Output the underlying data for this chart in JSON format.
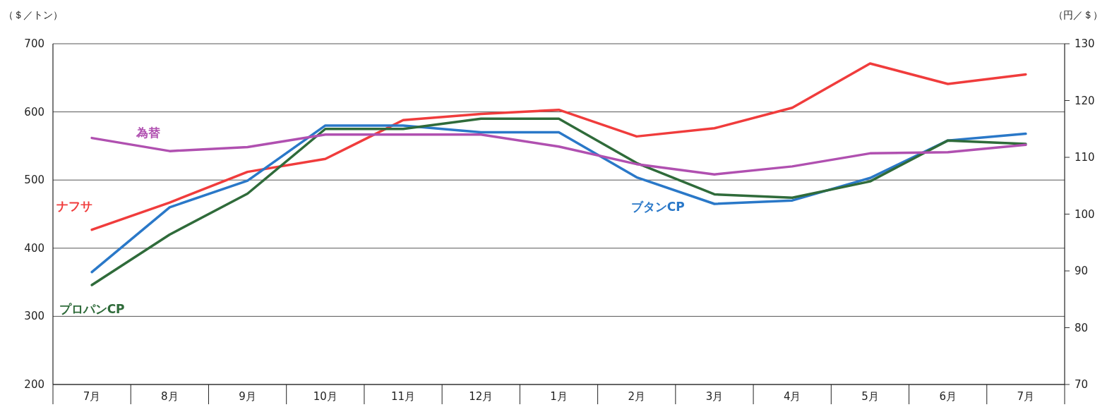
{
  "chart_data": {
    "type": "line",
    "ylabel": "（＄／トン）",
    "y2label": "（円／＄）",
    "categories": [
      "7月",
      "8月",
      "9月",
      "10月",
      "11月",
      "12月",
      "1月",
      "2月",
      "3月",
      "4月",
      "5月",
      "6月",
      "7月"
    ],
    "ylim": [
      200,
      700
    ],
    "yticks": [
      200,
      300,
      400,
      500,
      600,
      700
    ],
    "y2lim": [
      70,
      130
    ],
    "y2ticks": [
      70,
      80,
      90,
      100,
      110,
      120,
      130
    ],
    "grid": "y",
    "series": [
      {
        "name": "ナフサ",
        "color": "#f03c3c",
        "values": [
          427,
          467,
          512,
          531,
          588,
          597,
          603,
          564,
          576,
          606,
          671,
          641,
          655
        ]
      },
      {
        "name": "ブタンCP",
        "color": "#2a78c8",
        "values": [
          365,
          460,
          499,
          580,
          580,
          570,
          570,
          504,
          465,
          470,
          503,
          558,
          568
        ]
      },
      {
        "name": "プロパンCP",
        "color": "#2f6b3a",
        "values": [
          346,
          420,
          480,
          575,
          575,
          590,
          590,
          525,
          479,
          474,
          498,
          558,
          553
        ]
      },
      {
        "name": "為替",
        "color": "#b050b0",
        "axis": "y2",
        "values": [
          113.4,
          111.1,
          111.8,
          114.0,
          114.0,
          114.0,
          111.9,
          108.8,
          107.0,
          108.4,
          110.7,
          110.9,
          112.2
        ]
      }
    ]
  }
}
